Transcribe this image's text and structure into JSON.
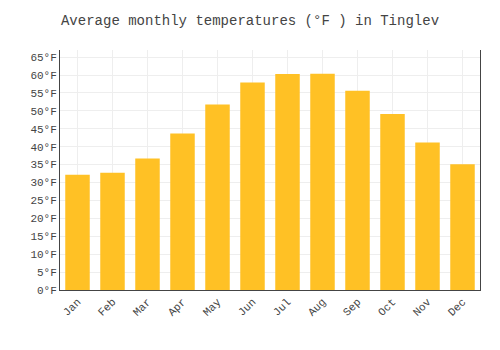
{
  "chart_data": {
    "type": "bar",
    "title": "Average monthly temperatures (°F ) in Tinglev",
    "categories": [
      "Jan",
      "Feb",
      "Mar",
      "Apr",
      "May",
      "Jun",
      "Jul",
      "Aug",
      "Sep",
      "Oct",
      "Nov",
      "Dec"
    ],
    "values": [
      32.2,
      32.7,
      36.7,
      43.7,
      51.8,
      57.9,
      60.3,
      60.4,
      55.6,
      49.1,
      41.2,
      35.1
    ],
    "color": "#FFC125",
    "ylim": [
      0,
      67
    ],
    "yticks": [
      {
        "value": 0,
        "label": "0°F"
      },
      {
        "value": 5,
        "label": "5°F"
      },
      {
        "value": 10,
        "label": "10°F"
      },
      {
        "value": 15,
        "label": "15°F"
      },
      {
        "value": 20,
        "label": "20°F"
      },
      {
        "value": 25,
        "label": "25°F"
      },
      {
        "value": 30,
        "label": "30°F"
      },
      {
        "value": 35,
        "label": "35°F"
      },
      {
        "value": 40,
        "label": "40°F"
      },
      {
        "value": 45,
        "label": "45°F"
      },
      {
        "value": 50,
        "label": "50°F"
      },
      {
        "value": 55,
        "label": "55°F"
      },
      {
        "value": 60,
        "label": "60°F"
      },
      {
        "value": 65,
        "label": "65°F"
      }
    ],
    "grid": true
  }
}
